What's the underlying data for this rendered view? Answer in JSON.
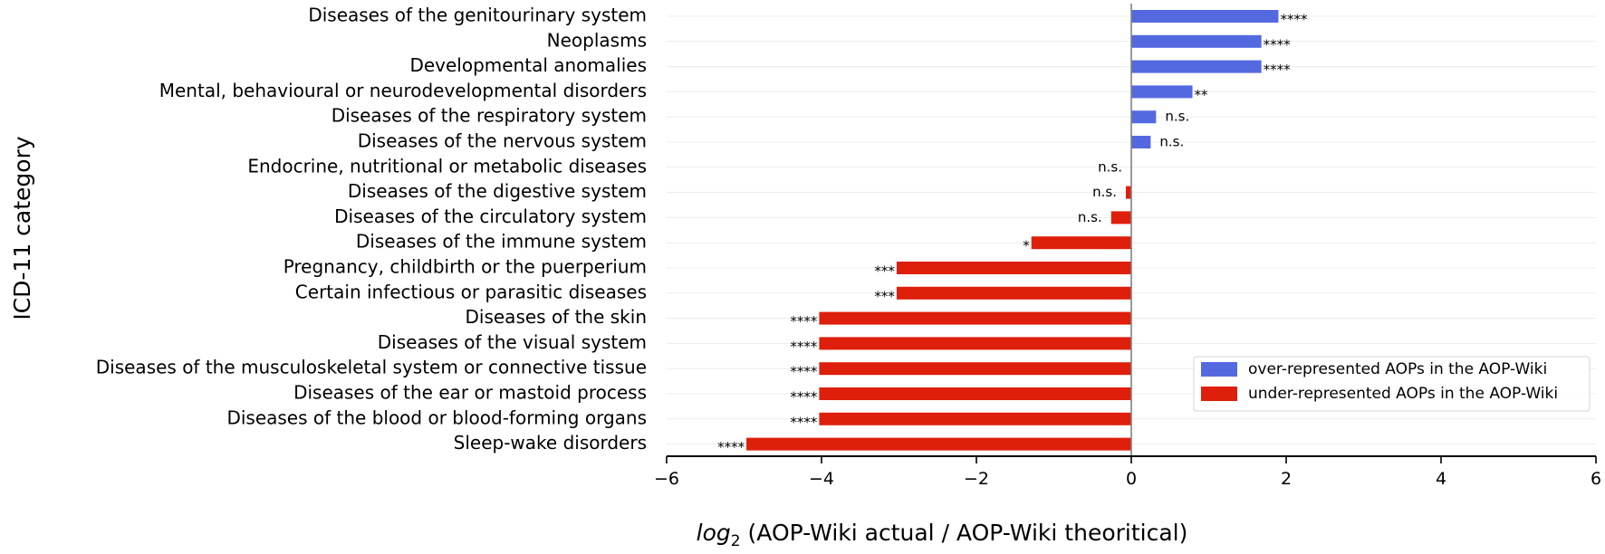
{
  "chart_data": {
    "type": "bar",
    "orientation": "horizontal",
    "title": "",
    "ylabel": "ICD-11 category",
    "xlabel": {
      "prefix": "log",
      "subscript": "2",
      "suffix": " (AOP-Wiki actual / AOP-Wiki theoritical)"
    },
    "xlim": [
      -6,
      6
    ],
    "xticks": [
      -6,
      -4,
      -2,
      0,
      2,
      4,
      6
    ],
    "xtick_labels": [
      "−6",
      "−4",
      "−2",
      "0",
      "2",
      "4",
      "6"
    ],
    "grid": "horizontal",
    "legend_position": "lower-right",
    "legend": [
      {
        "label": "over-represented AOPs in the AOP-Wiki",
        "color": "#5469e0"
      },
      {
        "label": "under-represented AOPs in the AOP-Wiki",
        "color": "#de1f0b"
      }
    ],
    "colors": {
      "positive": "#5469e0",
      "negative": "#de1f0b"
    },
    "categories": [
      "Diseases of the genitourinary system",
      "Neoplasms",
      "Developmental anomalies",
      "Mental, behavioural or neurodevelopmental disorders",
      "Diseases of the respiratory system",
      "Diseases of the nervous system",
      "Endocrine, nutritional or metabolic diseases",
      "Diseases of the digestive system",
      "Diseases of the circulatory system",
      "Diseases of the immune system",
      "Pregnancy, childbirth or the puerperium",
      "Certain infectious or parasitic diseases",
      "Diseases of the skin",
      "Diseases of the visual system",
      "Diseases of the musculoskeletal system or connective tissue",
      "Diseases of the ear or mastoid process",
      "Diseases of the blood or blood-forming organs",
      "Sleep-wake disorders"
    ],
    "values": [
      1.9,
      1.68,
      1.68,
      0.79,
      0.32,
      0.25,
      0.0,
      -0.07,
      -0.26,
      -1.29,
      -3.03,
      -3.03,
      -4.03,
      -4.03,
      -4.03,
      -4.03,
      -4.03,
      -4.97
    ],
    "significance": [
      "****",
      "****",
      "****",
      "**",
      "n.s.",
      "n.s.",
      "n.s.",
      "n.s.",
      "n.s.",
      "*",
      "***",
      "***",
      "****",
      "****",
      "****",
      "****",
      "****",
      "****"
    ]
  }
}
